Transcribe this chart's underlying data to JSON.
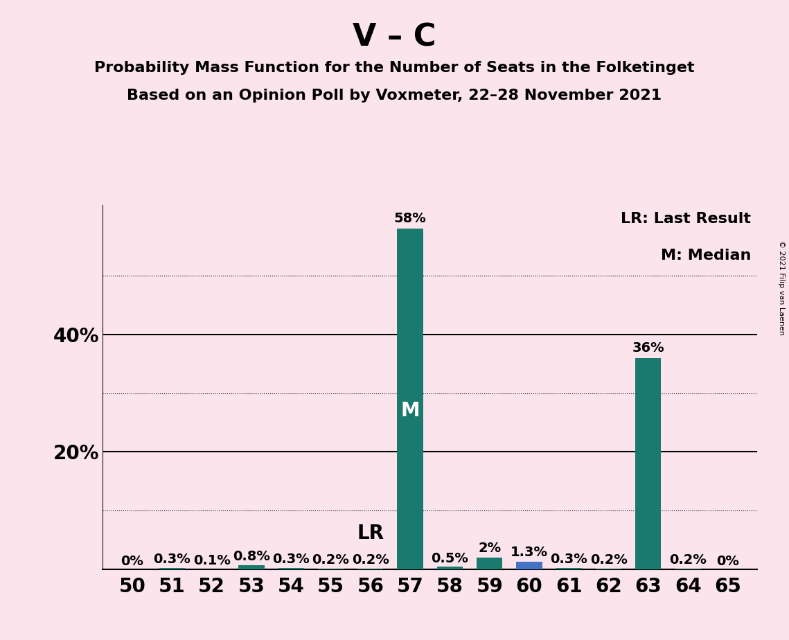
{
  "title": "V – C",
  "subtitle1": "Probability Mass Function for the Number of Seats in the Folketinget",
  "subtitle2": "Based on an Opinion Poll by Voxmeter, 22–28 November 2021",
  "copyright": "© 2021 Filip van Laenen",
  "seats": [
    50,
    51,
    52,
    53,
    54,
    55,
    56,
    57,
    58,
    59,
    60,
    61,
    62,
    63,
    64,
    65
  ],
  "values": [
    0.0,
    0.3,
    0.1,
    0.8,
    0.3,
    0.2,
    0.2,
    58.0,
    0.5,
    2.0,
    1.3,
    0.3,
    0.2,
    36.0,
    0.2,
    0.0
  ],
  "labels": [
    "0%",
    "0.3%",
    "0.1%",
    "0.8%",
    "0.3%",
    "0.2%",
    "0.2%",
    "58%",
    "0.5%",
    "2%",
    "1.3%",
    "0.3%",
    "0.2%",
    "36%",
    "0.2%",
    "0%"
  ],
  "bar_colors": [
    "#1a7a6e",
    "#1a7a6e",
    "#1a7a6e",
    "#1a7a6e",
    "#1a7a6e",
    "#1a7a6e",
    "#1a7a6e",
    "#1a7a6e",
    "#1a7a6e",
    "#1a7a6e",
    "#4472c4",
    "#1a7a6e",
    "#1a7a6e",
    "#1a7a6e",
    "#1a7a6e",
    "#1a7a6e"
  ],
  "background_color": "#fce4ec",
  "lr_seat": 56,
  "median_seat": 57,
  "ylim": [
    0,
    62
  ],
  "solid_yticks": [
    0,
    20,
    40
  ],
  "dotted_yticks": [
    10,
    30,
    50
  ],
  "shown_ytick_vals": [
    20,
    40
  ],
  "shown_ytick_labels": [
    "20%",
    "40%"
  ],
  "legend_lr": "LR: Last Result",
  "legend_m": "M: Median",
  "title_fontsize": 32,
  "subtitle_fontsize": 16,
  "axis_fontsize": 20,
  "bar_label_fontsize": 14,
  "marker_fontsize": 20,
  "legend_fontsize": 16
}
